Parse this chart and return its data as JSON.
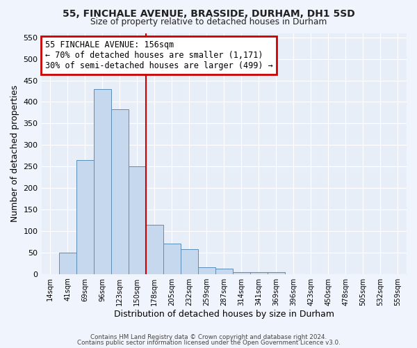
{
  "title1": "55, FINCHALE AVENUE, BRASSIDE, DURHAM, DH1 5SD",
  "title2": "Size of property relative to detached houses in Durham",
  "xlabel": "Distribution of detached houses by size in Durham",
  "ylabel": "Number of detached properties",
  "bin_labels": [
    "14sqm",
    "41sqm",
    "69sqm",
    "96sqm",
    "123sqm",
    "150sqm",
    "178sqm",
    "205sqm",
    "232sqm",
    "259sqm",
    "287sqm",
    "314sqm",
    "341sqm",
    "369sqm",
    "396sqm",
    "423sqm",
    "450sqm",
    "478sqm",
    "505sqm",
    "532sqm",
    "559sqm"
  ],
  "bar_heights": [
    0,
    50,
    265,
    430,
    383,
    250,
    115,
    70,
    58,
    15,
    13,
    5,
    5,
    5,
    0,
    0,
    0,
    0,
    0,
    0,
    0
  ],
  "bar_color": "#c5d8ed",
  "bar_edge_color": "#5b8db8",
  "property_line_x": 5.5,
  "property_line_color": "#cc0000",
  "annotation_text": "55 FINCHALE AVENUE: 156sqm\n← 70% of detached houses are smaller (1,171)\n30% of semi-detached houses are larger (499) →",
  "annotation_box_color": "#ffffff",
  "annotation_box_edge": "#cc0000",
  "ylim": [
    0,
    560
  ],
  "yticks": [
    0,
    50,
    100,
    150,
    200,
    250,
    300,
    350,
    400,
    450,
    500,
    550
  ],
  "background_color": "#e8eef8",
  "grid_color": "#ffffff",
  "fig_bg": "#f0f4fc",
  "footer_line1": "Contains HM Land Registry data © Crown copyright and database right 2024.",
  "footer_line2": "Contains public sector information licensed under the Open Government Licence v3.0."
}
